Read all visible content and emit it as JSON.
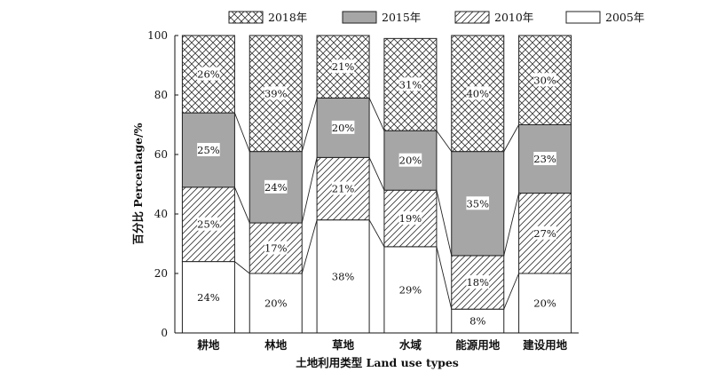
{
  "chart_data": {
    "type": "bar",
    "stacked": true,
    "categories": [
      "耕地",
      "林地",
      "草地",
      "水域",
      "能源用地",
      "建设用地"
    ],
    "series": [
      {
        "name": "2005年",
        "values": [
          24,
          20,
          38,
          29,
          8,
          20
        ],
        "color": "#ffffff",
        "pattern": "none"
      },
      {
        "name": "2010年",
        "values": [
          25,
          17,
          21,
          19,
          18,
          27
        ],
        "color": "#ffffff",
        "pattern": "diagonal-hatch"
      },
      {
        "name": "2015年",
        "values": [
          25,
          24,
          20,
          20,
          35,
          23
        ],
        "color": "#a6a6a6",
        "pattern": "solid"
      },
      {
        "name": "2018年",
        "values": [
          26,
          39,
          21,
          31,
          40,
          30
        ],
        "color": "#ffffff",
        "pattern": "cross-hatch"
      }
    ],
    "legend_order": [
      "2018年",
      "2015年",
      "2010年",
      "2005年"
    ],
    "xlabel": "土地利用类型 Land use types",
    "ylabel": "百分比 Percentage/%",
    "ylim": [
      0,
      100
    ],
    "yticks": [
      0,
      20,
      40,
      60,
      80,
      100
    ],
    "legend_position": "top",
    "connector_lines": true,
    "grid": false
  }
}
